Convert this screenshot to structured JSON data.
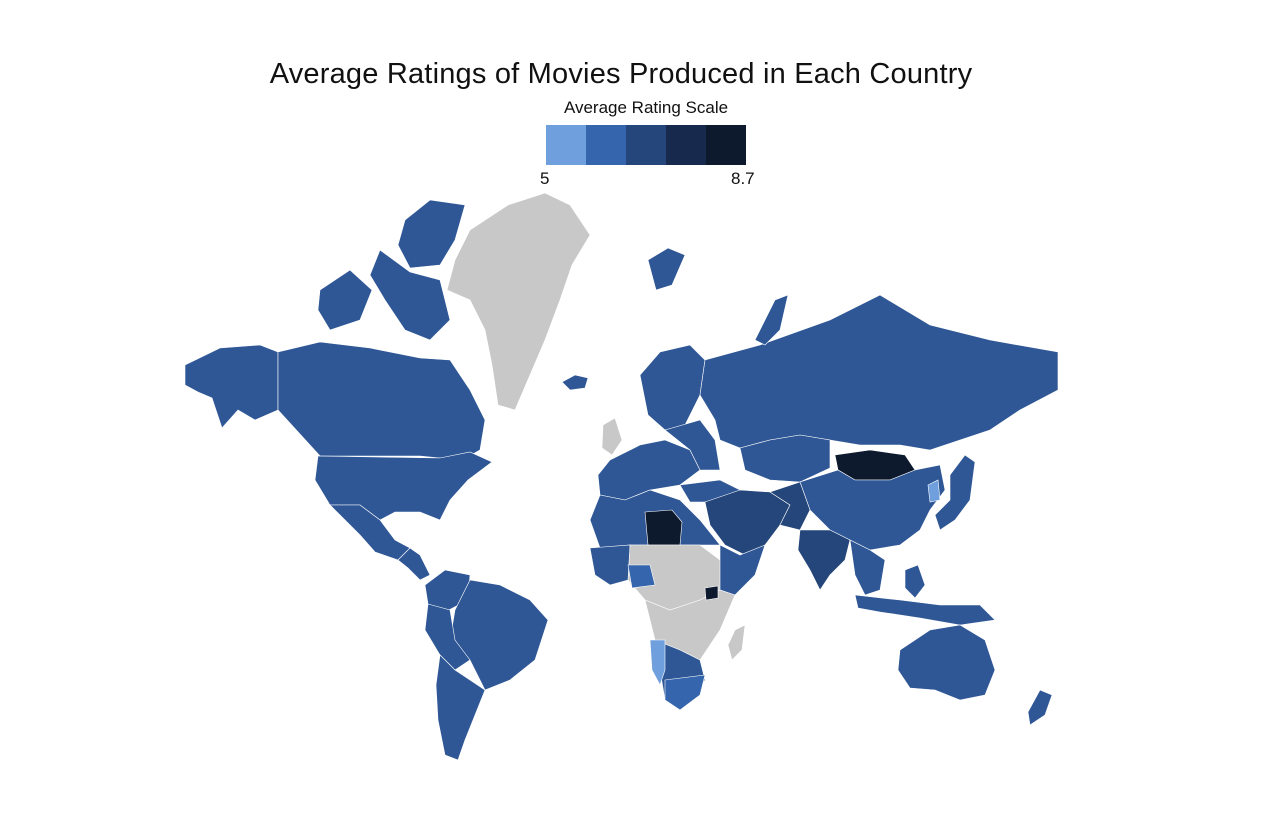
{
  "title": "Average Ratings of Movies Produced in Each Country",
  "legend": {
    "title": "Average Rating Scale",
    "min_label": "5",
    "max_label": "8.7",
    "min": 5,
    "max": 8.7,
    "colors": [
      "#6f9fdd",
      "#3565ad",
      "#24467a",
      "#172a4d",
      "#0d1a2e"
    ]
  },
  "map_colors": {
    "no_data": "#c8c8c8",
    "default": "#2f5796"
  }
}
